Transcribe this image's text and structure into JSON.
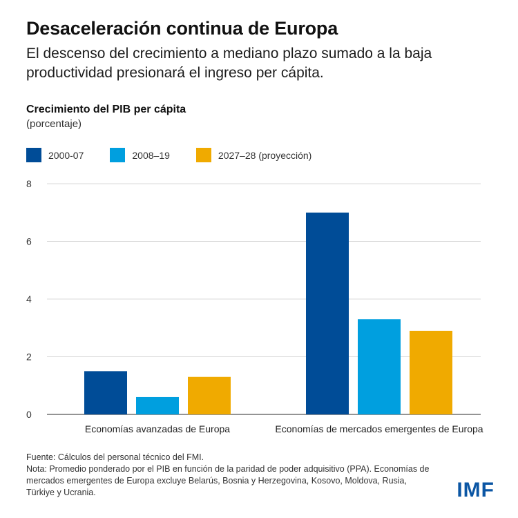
{
  "header": {
    "title": "Desaceleración continua de Europa",
    "subtitle": "El descenso del crecimiento a mediano plazo sumado a la baja productividad presionará el ingreso per cápita."
  },
  "chart_data": {
    "type": "bar",
    "title": "Crecimiento del PIB per cápita",
    "unit": "(porcentaje)",
    "categories": [
      "Economías avanzadas de Europa",
      "Economías de mercados emergentes de Europa"
    ],
    "series": [
      {
        "name": "2000-07",
        "color": "#004c97",
        "values": [
          1.5,
          7.0
        ]
      },
      {
        "name": "2008–19",
        "color": "#009fdf",
        "values": [
          0.6,
          3.3
        ]
      },
      {
        "name": "2027–28 (proyección)",
        "color": "#f0aa00",
        "values": [
          1.3,
          2.9
        ]
      }
    ],
    "yticks": [
      "0",
      "2",
      "4",
      "6",
      "8"
    ],
    "ylim": [
      0,
      8
    ],
    "grid": true,
    "legend_position": "top-left"
  },
  "footer": {
    "source": "Fuente: Cálculos del personal técnico del FMI.",
    "note": "Nota: Promedio ponderado por el PIB en función de la paridad de poder adquisitivo (PPA). Economías de mercados emergentes de Europa excluye Belarús, Bosnia y Herzegovina, Kosovo, Moldova, Rusia, Türkiye y Ucrania.",
    "logo": "IMF"
  }
}
